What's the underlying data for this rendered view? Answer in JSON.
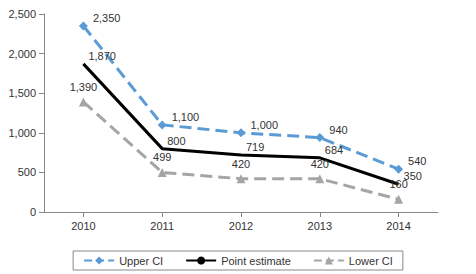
{
  "chart_data": {
    "type": "line",
    "categories": [
      "2010",
      "2011",
      "2012",
      "2013",
      "2014"
    ],
    "series": [
      {
        "name": "Upper CI",
        "color": "#5b9bd5",
        "marker": "diamond",
        "line_style": "dashed",
        "values": [
          2350,
          1100,
          1000,
          940,
          540
        ],
        "value_labels": [
          "2,350",
          "1,100",
          "1,000",
          "940",
          "540"
        ]
      },
      {
        "name": "Point estimate",
        "color": "#000000",
        "marker": "none",
        "line_style": "solid",
        "values": [
          1870,
          800,
          719,
          684,
          350
        ],
        "value_labels": [
          "1,870",
          "800",
          "719",
          "684",
          "350"
        ]
      },
      {
        "name": "Lower CI",
        "color": "#a5a5a5",
        "marker": "triangle",
        "line_style": "dashed",
        "values": [
          1390,
          499,
          420,
          420,
          160
        ],
        "value_labels": [
          "1,390",
          "499",
          "420",
          "420",
          "160"
        ]
      }
    ],
    "ylim": [
      0,
      2500
    ],
    "yticks": [
      0,
      500,
      {
        "value": 1000,
        "label": "1,000"
      },
      {
        "value": 1500,
        "label": "1,500"
      },
      {
        "value": 2000,
        "label": "2,000"
      },
      {
        "value": 2500,
        "label": "2,500"
      }
    ],
    "grid": false,
    "legend": "bottom",
    "data_labels": true
  }
}
